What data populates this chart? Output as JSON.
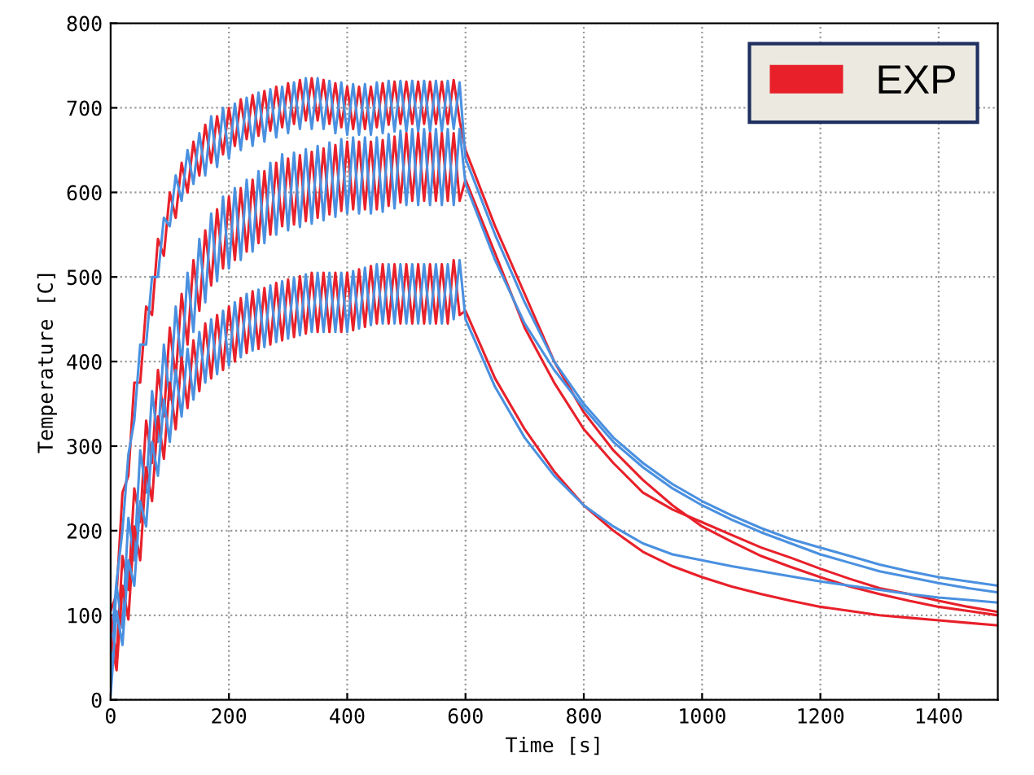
{
  "chart_data": {
    "type": "line",
    "xlabel": "Time [s]",
    "ylabel": "Temperature [C]",
    "x": [
      0,
      10,
      20,
      30,
      40,
      50,
      60,
      70,
      80,
      90,
      100,
      110,
      120,
      130,
      140,
      150,
      160,
      170,
      180,
      190,
      200,
      210,
      220,
      230,
      240,
      250,
      260,
      270,
      280,
      290,
      300,
      310,
      320,
      330,
      340,
      350,
      360,
      370,
      380,
      390,
      400,
      410,
      420,
      430,
      440,
      450,
      460,
      470,
      480,
      490,
      500,
      510,
      520,
      530,
      540,
      550,
      560,
      570,
      580,
      590,
      600,
      650,
      700,
      750,
      800,
      850,
      900,
      950,
      1000,
      1050,
      1100,
      1150,
      1200,
      1250,
      1300,
      1350,
      1400,
      1450,
      1500
    ],
    "series": [
      {
        "name": "EXP",
        "color": "#e8202a",
        "values": [
          105,
          125,
          245,
          265,
          375,
          375,
          465,
          455,
          545,
          525,
          600,
          570,
          635,
          600,
          660,
          620,
          680,
          635,
          690,
          645,
          700,
          655,
          710,
          663,
          715,
          667,
          720,
          673,
          725,
          677,
          729,
          681,
          733,
          685,
          735,
          685,
          733,
          681,
          729,
          677,
          725,
          675,
          725,
          675,
          725,
          677,
          729,
          680,
          731,
          681,
          731,
          681,
          731,
          681,
          731,
          681,
          731,
          681,
          733,
          685,
          650,
          560,
          480,
          400,
          340,
          295,
          260,
          230,
          205,
          187,
          170,
          157,
          145,
          134,
          125,
          117,
          110,
          105,
          100
        ]
      },
      {
        "color": "#4a90e0",
        "values": [
          60,
          140,
          200,
          290,
          330,
          420,
          420,
          500,
          500,
          570,
          560,
          620,
          590,
          650,
          610,
          670,
          620,
          690,
          630,
          700,
          640,
          705,
          650,
          712,
          655,
          718,
          660,
          722,
          665,
          725,
          670,
          730,
          675,
          735,
          675,
          735,
          675,
          732,
          670,
          730,
          668,
          728,
          668,
          728,
          668,
          730,
          670,
          732,
          672,
          732,
          672,
          732,
          672,
          732,
          672,
          732,
          672,
          732,
          675,
          730,
          640,
          550,
          470,
          400,
          350,
          310,
          280,
          255,
          235,
          218,
          203,
          190,
          180,
          170,
          160,
          152,
          145,
          140,
          135
        ]
      },
      {
        "color": "#e8202a",
        "values": [
          100,
          50,
          170,
          130,
          250,
          210,
          330,
          280,
          390,
          335,
          440,
          380,
          480,
          420,
          520,
          460,
          555,
          490,
          580,
          510,
          595,
          520,
          605,
          530,
          615,
          540,
          625,
          550,
          635,
          560,
          640,
          562,
          644,
          566,
          648,
          570,
          652,
          574,
          656,
          578,
          660,
          580,
          660,
          580,
          660,
          580,
          662,
          584,
          666,
          588,
          670,
          590,
          670,
          590,
          670,
          590,
          670,
          590,
          670,
          590,
          615,
          528,
          440,
          375,
          320,
          280,
          245,
          225,
          210,
          195,
          180,
          168,
          155,
          143,
          132,
          125,
          117,
          110,
          104
        ]
      },
      {
        "color": "#4a90e0",
        "values": [
          20,
          135,
          85,
          215,
          165,
          295,
          245,
          365,
          305,
          420,
          355,
          465,
          395,
          505,
          435,
          545,
          470,
          575,
          495,
          595,
          510,
          605,
          520,
          615,
          530,
          625,
          540,
          635,
          550,
          645,
          555,
          647,
          559,
          651,
          563,
          655,
          567,
          659,
          571,
          663,
          575,
          665,
          575,
          665,
          575,
          665,
          577,
          669,
          581,
          673,
          585,
          675,
          585,
          675,
          585,
          675,
          585,
          675,
          585,
          675,
          610,
          520,
          445,
          390,
          345,
          305,
          275,
          250,
          230,
          213,
          198,
          185,
          172,
          162,
          152,
          145,
          138,
          132,
          127
        ]
      },
      {
        "color": "#e8202a",
        "values": [
          75,
          35,
          135,
          95,
          205,
          165,
          275,
          235,
          335,
          285,
          375,
          320,
          405,
          345,
          425,
          365,
          445,
          380,
          455,
          390,
          465,
          400,
          475,
          410,
          483,
          415,
          487,
          420,
          493,
          425,
          497,
          429,
          501,
          433,
          505,
          435,
          505,
          435,
          505,
          435,
          505,
          437,
          509,
          441,
          513,
          445,
          515,
          445,
          515,
          445,
          515,
          445,
          515,
          445,
          515,
          445,
          515,
          445,
          520,
          455,
          460,
          380,
          320,
          270,
          230,
          200,
          175,
          158,
          145,
          134,
          125,
          117,
          110,
          105,
          100,
          97,
          94,
          91,
          88
        ]
      },
      {
        "color": "#4a90e0",
        "values": [
          5,
          105,
          65,
          165,
          135,
          235,
          205,
          305,
          265,
          355,
          305,
          390,
          335,
          415,
          355,
          435,
          375,
          450,
          385,
          460,
          395,
          470,
          405,
          480,
          413,
          485,
          417,
          490,
          423,
          495,
          427,
          499,
          431,
          503,
          435,
          505,
          435,
          505,
          435,
          505,
          435,
          507,
          439,
          511,
          443,
          515,
          445,
          515,
          445,
          515,
          445,
          515,
          445,
          515,
          445,
          515,
          445,
          515,
          450,
          520,
          450,
          370,
          310,
          265,
          230,
          205,
          185,
          172,
          165,
          158,
          152,
          146,
          140,
          135,
          130,
          125,
          121,
          118,
          115
        ]
      }
    ],
    "xlim": [
      0,
      1500
    ],
    "xticks": [
      0,
      200,
      400,
      600,
      800,
      1000,
      1200,
      1400
    ],
    "ylim": [
      0,
      800
    ],
    "yticks": [
      0,
      100,
      200,
      300,
      400,
      500,
      600,
      700,
      800
    ],
    "grid": true,
    "legend": "top right",
    "marker": "none",
    "line_style": "solid"
  }
}
